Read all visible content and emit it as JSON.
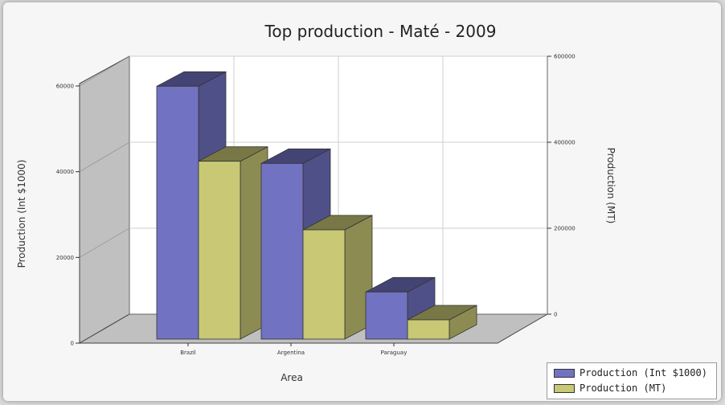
{
  "chart_data": {
    "type": "bar",
    "title": "Top production - Maté - 2009",
    "xlabel": "Area",
    "ylabel_left": "Production (Int $1000)",
    "ylabel_right": "Production (MT)",
    "categories": [
      "Brazil",
      "Argentina",
      "Paraguay"
    ],
    "series": [
      {
        "name": "Production (Int $1000)",
        "axis": "left",
        "color": "#7272c2",
        "values": [
          59000,
          41000,
          11000
        ]
      },
      {
        "name": "Production (MT)",
        "axis": "right",
        "color": "#c8c875",
        "values": [
          415000,
          255000,
          45000
        ]
      }
    ],
    "y_left": {
      "min": 0,
      "max": 60000,
      "ticks": [
        "0",
        "20000",
        "40000",
        "60000"
      ]
    },
    "y_right": {
      "min": 0,
      "max": 600000,
      "ticks": [
        "0",
        "200000",
        "400000",
        "600000"
      ]
    },
    "grid": true,
    "legend_position": "bottom-right"
  }
}
